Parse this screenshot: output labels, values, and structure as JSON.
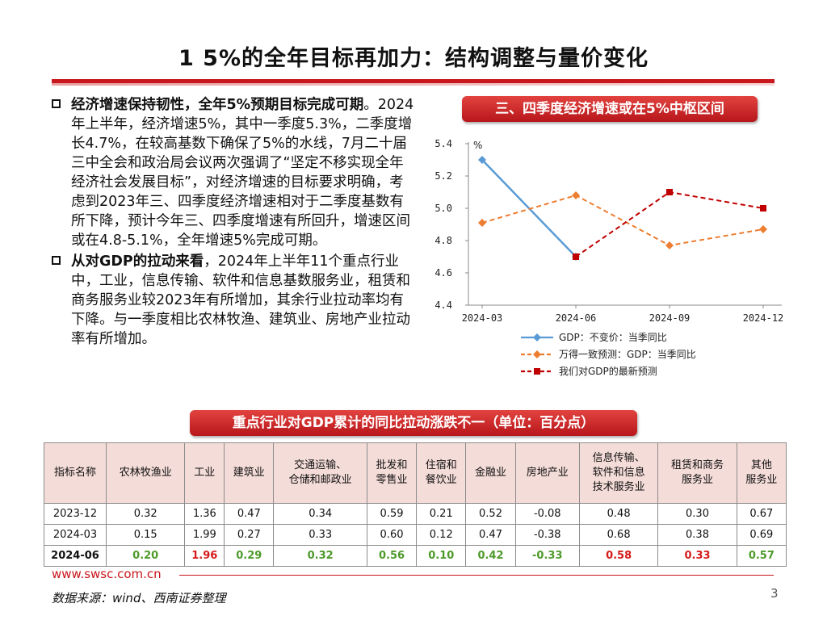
{
  "title": "1 5%的全年目标再加力：结构调整与量价变化",
  "paragraphs": [
    {
      "bold": "经济增速保持韧性，全年5%预期目标完成可期",
      "text": "。2024年上半年，经济增速5%，其中一季度5.3%，二季度增长4.7%，在较高基数下确保了5%的水线，7月二十届三中全会和政治局会议两次强调了“坚定不移实现全年经济社会发展目标”，对经济增速的目标要求明确，考虑到2023年三、四季度经济增速相对于二季度基数有所下降，预计今年三、四季度增速有所回升，增速区间或在4.8-5.1%，全年增速5%完成可期。"
    },
    {
      "bold": "从对GDP的拉动来看",
      "text": "，2024年上半年11个重点行业中，工业，信息传输、软件和信息基数服务业，租赁和商务服务业较2023年有所增加，其余行业拉动率均有下降。与一季度相比农林牧渔、建筑业、房地产业拉动率有所增加。"
    }
  ],
  "chart_pill": "三、四季度经济增速或在5%中枢区间",
  "table_pill": "重点行业对GDP累计的同比拉动涨跌不一（单位：百分点）",
  "chart_data": {
    "type": "line",
    "x": [
      "2024-03",
      "2024-06",
      "2024-09",
      "2024-12"
    ],
    "ylabel": "%",
    "ylim": [
      4.4,
      5.4
    ],
    "yticks": [
      "5.4",
      "5.2",
      "5.0",
      "4.8",
      "4.6",
      "4.4"
    ],
    "series": [
      {
        "name": "GDP：不变价：当季同比",
        "color": "#5b9bd5",
        "style": "solid",
        "marker": "diamond",
        "values": [
          5.3,
          4.7,
          null,
          null
        ]
      },
      {
        "name": "万得一致预测：GDP：当季同比",
        "color": "#ed7d31",
        "style": "dashed",
        "marker": "diamond",
        "values": [
          4.91,
          5.08,
          4.77,
          4.87
        ]
      },
      {
        "name": "我们对GDP的最新预测",
        "color": "#c00000",
        "style": "dashed",
        "marker": "square",
        "values": [
          null,
          4.7,
          5.1,
          5.0
        ]
      }
    ]
  },
  "table": {
    "headers": [
      "指标名称",
      "农林牧渔业",
      "工业",
      "建筑业",
      "交通运输、\n仓储和邮政业",
      "批发和\n零售业",
      "住宿和\n餐饮业",
      "金融业",
      "房地产业",
      "信息传输、\n软件和信息\n技术服务业",
      "租赁和商务\n服务业",
      "其他\n服务业"
    ],
    "rows": [
      [
        "2023-12",
        "0.32",
        "1.36",
        "0.47",
        "0.34",
        "0.59",
        "0.21",
        "0.52",
        "-0.08",
        "0.48",
        "0.30",
        "0.67"
      ],
      [
        "2024-03",
        "0.15",
        "1.99",
        "0.27",
        "0.33",
        "0.60",
        "0.12",
        "0.47",
        "-0.38",
        "0.68",
        "0.38",
        "0.69"
      ],
      [
        "2024-06",
        "0.20",
        "1.96",
        "0.29",
        "0.32",
        "0.56",
        "0.10",
        "0.42",
        "-0.33",
        "0.58",
        "0.33",
        "0.57"
      ]
    ],
    "last_row_colors": [
      "",
      "green",
      "red",
      "green",
      "green",
      "green",
      "green",
      "green",
      "green",
      "red",
      "red",
      "green"
    ]
  },
  "footer": {
    "url": "www.swsc.com.cn",
    "source": "数据来源：wind、西南证券整理",
    "page": "3"
  }
}
